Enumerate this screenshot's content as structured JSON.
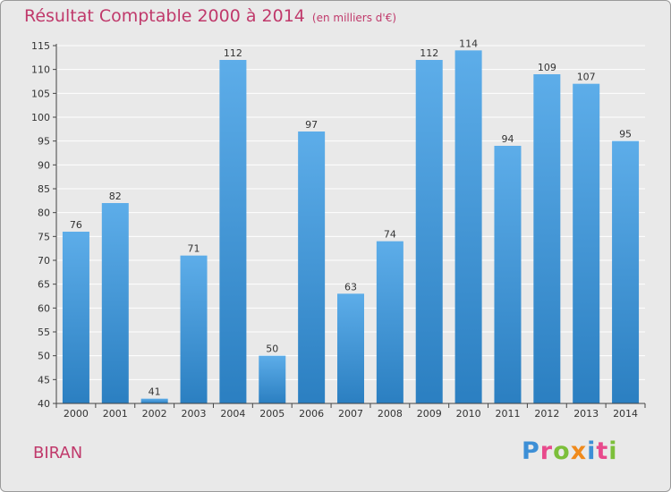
{
  "commune": "BIRAN",
  "logo_text": "Proxiti",
  "chart_data": {
    "type": "bar",
    "title": "Résultat Comptable 2000 à 2014",
    "subtitle": "(en milliers d'€)",
    "xlabel": "",
    "ylabel": "",
    "categories": [
      "2000",
      "2001",
      "2002",
      "2003",
      "2004",
      "2005",
      "2006",
      "2007",
      "2008",
      "2009",
      "2010",
      "2011",
      "2012",
      "2013",
      "2014"
    ],
    "values": [
      76,
      82,
      41,
      71,
      112,
      50,
      97,
      63,
      74,
      112,
      114,
      94,
      109,
      107,
      95
    ],
    "ylim": [
      40,
      115
    ],
    "yticks": [
      40,
      45,
      50,
      55,
      60,
      65,
      70,
      75,
      80,
      85,
      90,
      95,
      100,
      105,
      110,
      115
    ],
    "grid": true,
    "bar_color": "#3d93d6"
  }
}
